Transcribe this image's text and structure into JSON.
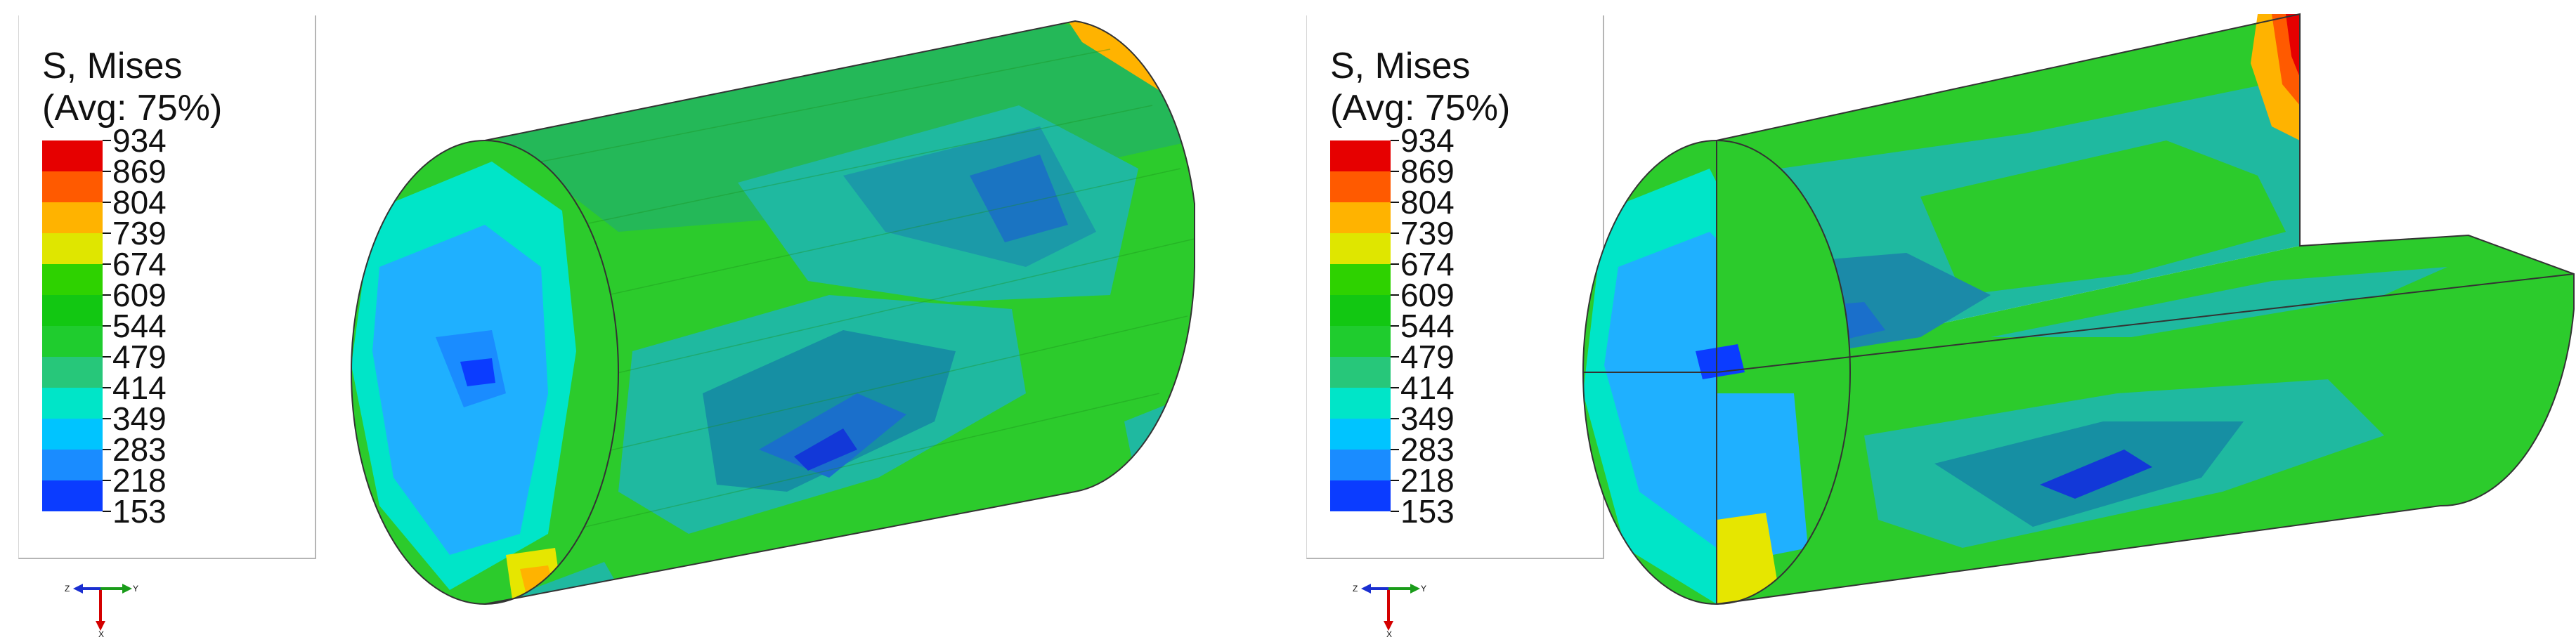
{
  "legend": {
    "title_line1": "S, Mises",
    "title_line2": "(Avg: 75%)",
    "levels": [
      "934",
      "869",
      "804",
      "739",
      "674",
      "609",
      "544",
      "479",
      "414",
      "349",
      "283",
      "218",
      "153"
    ],
    "band_colors": [
      "#e60000",
      "#ff5a00",
      "#ffb300",
      "#dfe600",
      "#2ed200",
      "#12c712",
      "#1fcc2e",
      "#27c77a",
      "#00e5c8",
      "#00c4ff",
      "#1a8cff",
      "#0b3cff"
    ]
  },
  "triad": {
    "axis_x": "X",
    "axis_y": "Y",
    "axis_z": "Z"
  },
  "colors": {
    "body_green": "#2bc82b",
    "teal": "#1fb99a",
    "dark_teal": "#148a8a",
    "blue": "#1f6fcf",
    "light_blue": "#2fa3ff",
    "cyan": "#00e6d6",
    "red": "#e60000",
    "orange": "#ff7a00",
    "yellow": "#e6e600"
  }
}
